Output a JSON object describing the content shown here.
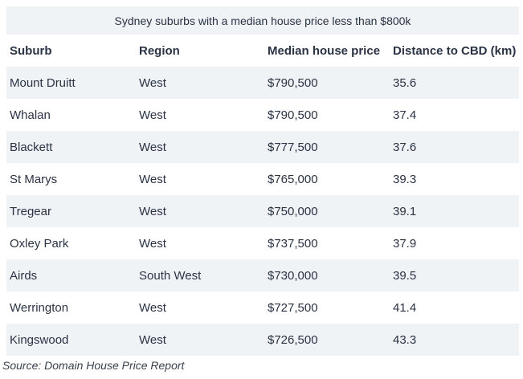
{
  "colors": {
    "stripe": "#f0f3f6",
    "table_text": "#2a3344",
    "source_text": "#39424f",
    "background": "#ffffff"
  },
  "chart_data": {
    "type": "table",
    "title": "Sydney suburbs with a median house price less than $800k",
    "columns": [
      "Suburb",
      "Region",
      "Median house price",
      "Distance to CBD (km)"
    ],
    "rows": [
      [
        "Mount Druitt",
        "West",
        "$790,500",
        "35.6"
      ],
      [
        "Whalan",
        "West",
        "$790,500",
        "37.4"
      ],
      [
        "Blackett",
        "West",
        "$777,500",
        "37.6"
      ],
      [
        "St Marys",
        "West",
        "$765,000",
        "39.3"
      ],
      [
        "Tregear",
        "West",
        "$750,000",
        "39.1"
      ],
      [
        "Oxley Park",
        "West",
        "$737,500",
        "37.9"
      ],
      [
        "Airds",
        "South West",
        "$730,000",
        "39.5"
      ],
      [
        "Werrington",
        "West",
        "$727,500",
        "41.4"
      ],
      [
        "Kingswood",
        "West",
        "$726,500",
        "43.3"
      ]
    ],
    "row_stripes": true,
    "source": "Source: Domain House Price Report",
    "units": {
      "median_house_price": "AUD",
      "distance_to_cbd": "km"
    },
    "price_threshold_in_title": 800000
  }
}
